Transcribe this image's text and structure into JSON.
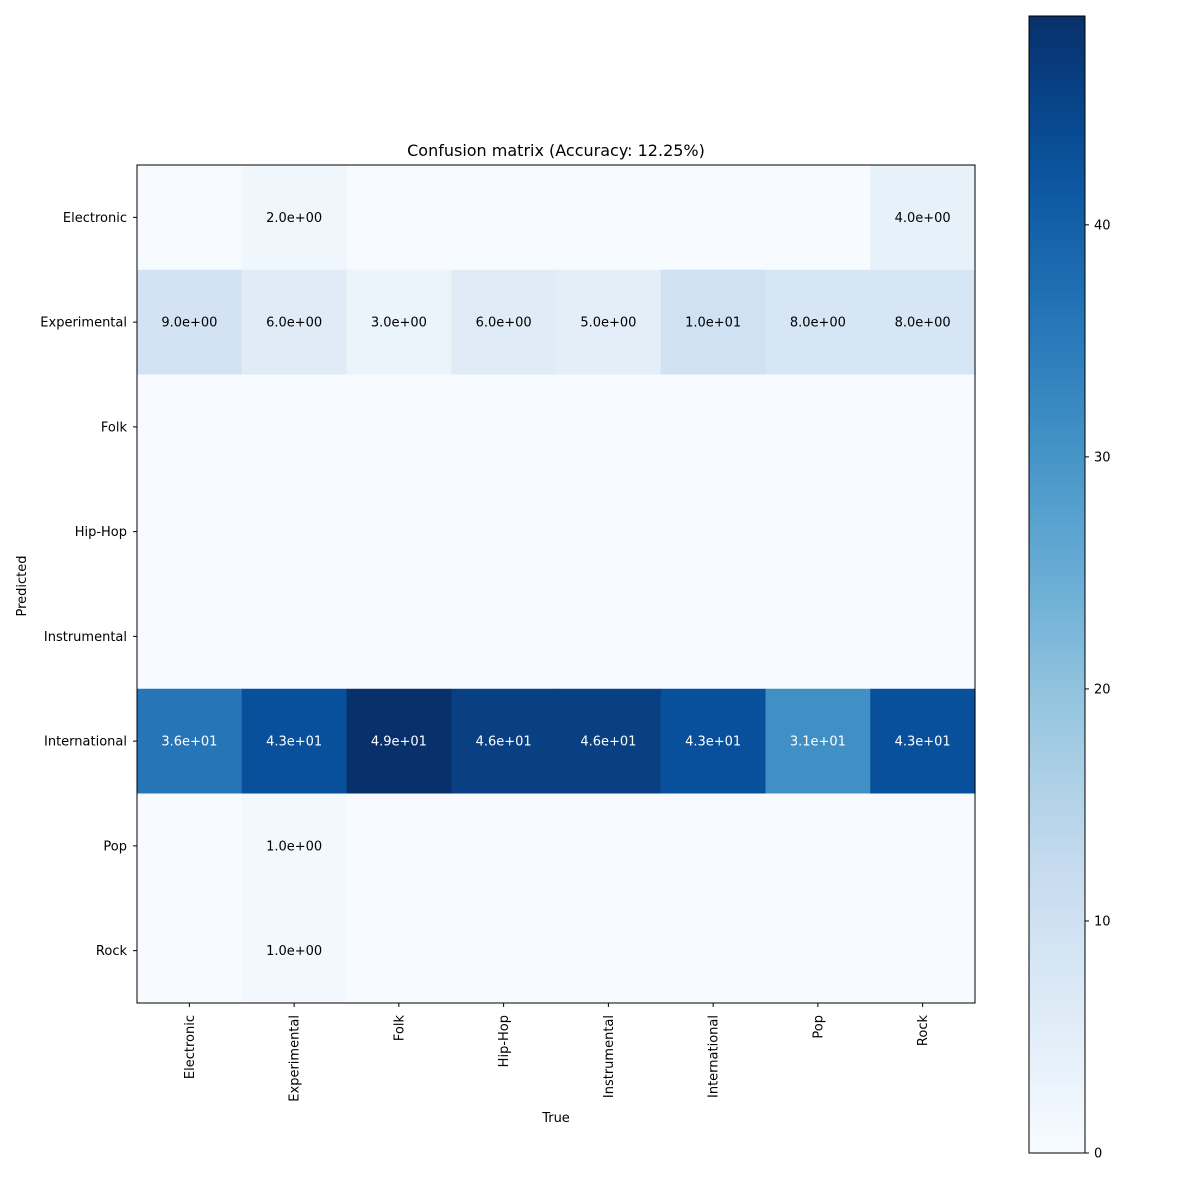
{
  "chart_data": {
    "type": "heatmap",
    "title": "Confusion matrix (Accuracy: 12.25%)",
    "xlabel": "True",
    "ylabel": "Predicted",
    "x_categories": [
      "Electronic",
      "Experimental",
      "Folk",
      "Hip-Hop",
      "Instrumental",
      "International",
      "Pop",
      "Rock"
    ],
    "y_categories": [
      "Electronic",
      "Experimental",
      "Folk",
      "Hip-Hop",
      "Instrumental",
      "International",
      "Pop",
      "Rock"
    ],
    "values": [
      [
        0,
        2,
        0,
        0,
        0,
        0,
        0,
        4
      ],
      [
        9,
        6,
        3,
        6,
        5,
        10,
        8,
        8
      ],
      [
        0,
        0,
        0,
        0,
        0,
        0,
        0,
        0
      ],
      [
        0,
        0,
        0,
        0,
        0,
        0,
        0,
        0
      ],
      [
        0,
        0,
        0,
        0,
        0,
        0,
        0,
        0
      ],
      [
        36,
        43,
        49,
        46,
        46,
        43,
        31,
        43
      ],
      [
        0,
        1,
        0,
        0,
        0,
        0,
        0,
        0
      ],
      [
        0,
        1,
        0,
        0,
        0,
        0,
        0,
        0
      ]
    ],
    "cell_labels": [
      [
        "",
        "2.0e+00",
        "",
        "",
        "",
        "",
        "",
        "4.0e+00"
      ],
      [
        "9.0e+00",
        "6.0e+00",
        "3.0e+00",
        "6.0e+00",
        "5.0e+00",
        "1.0e+01",
        "8.0e+00",
        "8.0e+00"
      ],
      [
        "",
        "",
        "",
        "",
        "",
        "",
        "",
        ""
      ],
      [
        "",
        "",
        "",
        "",
        "",
        "",
        "",
        ""
      ],
      [
        "",
        "",
        "",
        "",
        "",
        "",
        "",
        ""
      ],
      [
        "3.6e+01",
        "4.3e+01",
        "4.9e+01",
        "4.6e+01",
        "4.6e+01",
        "4.3e+01",
        "3.1e+01",
        "4.3e+01"
      ],
      [
        "",
        "1.0e+00",
        "",
        "",
        "",
        "",
        "",
        ""
      ],
      [
        "",
        "1.0e+00",
        "",
        "",
        "",
        "",
        "",
        ""
      ]
    ],
    "colormap": "Blues",
    "colorbar": {
      "range": [
        0,
        49
      ],
      "ticks": [
        0,
        10,
        20,
        30,
        40
      ],
      "tick_labels": [
        "0",
        "10",
        "20",
        "30",
        "40"
      ]
    },
    "grid": false,
    "colors": {
      "low": "#f7fbff",
      "high": "#08306b",
      "text_dark": "#000000",
      "text_light": "#ffffff"
    }
  }
}
